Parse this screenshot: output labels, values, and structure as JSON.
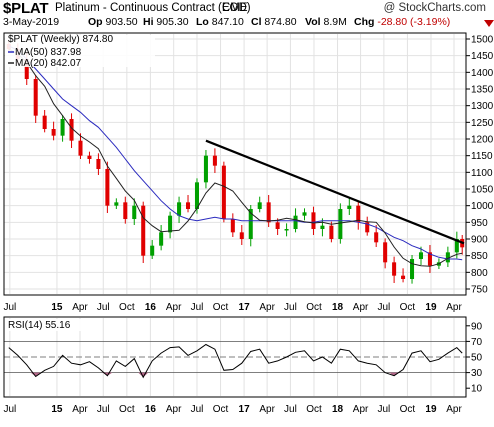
{
  "header": {
    "symbol": "$PLAT",
    "description": "Platinum - Continuous Contract (EOD)",
    "exchange": "CME",
    "watermark": "@ StockCharts.com",
    "date": "3-May-2019",
    "quote": {
      "open_label": "Op",
      "open": "903.50",
      "high_label": "Hi",
      "high": "905.30",
      "low_label": "Lo",
      "low": "847.10",
      "close_label": "Cl",
      "close": "874.80",
      "vol_label": "Vol",
      "vol": "8.9M",
      "chg_label": "Chg",
      "chg": "-28.80 (-3.19%)"
    },
    "colors": {
      "down": "#c00000"
    },
    "chg_icon": "down-triangle-icon"
  },
  "chart_data": [
    {
      "type": "candlestick",
      "legend": [
        {
          "label": "$PLAT (Weekly) 874.80",
          "color": "#000000"
        },
        {
          "label": "MA(50) 837.98",
          "color": "#2b2bbf"
        },
        {
          "label": "MA(20) 842.07",
          "color": "#222222"
        }
      ],
      "x_tick_labels": [
        "Jul",
        "15",
        "Apr",
        "Jul",
        "Oct",
        "16",
        "Apr",
        "Jul",
        "Oct",
        "17",
        "Apr",
        "Jul",
        "Oct",
        "18",
        "Apr",
        "Jul",
        "Oct",
        "19",
        "Apr"
      ],
      "y_ticks": [
        750,
        800,
        850,
        900,
        950,
        1000,
        1050,
        1100,
        1150,
        1200,
        1250,
        1300,
        1350,
        1400,
        1450,
        1500
      ],
      "ylim": [
        735,
        1515
      ],
      "grid": true,
      "colors": {
        "up": "#00a000",
        "down": "#e00000",
        "ma50": "#2b2bbf",
        "ma20": "#222222",
        "trendline": "#000000"
      },
      "trendline": [
        {
          "x": "2016-08-05",
          "y": 1195
        },
        {
          "x": "2019-05-03",
          "y": 893
        }
      ],
      "x": [
        "2014-06-27",
        "2014-08-01",
        "2014-09-05",
        "2014-10-10",
        "2014-11-14",
        "2014-12-19",
        "2015-01-23",
        "2015-02-27",
        "2015-04-03",
        "2015-05-08",
        "2015-06-12",
        "2015-07-17",
        "2015-08-21",
        "2015-09-25",
        "2015-10-30",
        "2015-12-04",
        "2016-01-08",
        "2016-02-12",
        "2016-03-18",
        "2016-04-22",
        "2016-05-27",
        "2016-07-01",
        "2016-08-05",
        "2016-09-09",
        "2016-10-14",
        "2016-11-18",
        "2016-12-23",
        "2017-01-27",
        "2017-03-03",
        "2017-04-07",
        "2017-05-12",
        "2017-06-16",
        "2017-07-21",
        "2017-08-25",
        "2017-09-29",
        "2017-11-03",
        "2017-12-08",
        "2018-01-12",
        "2018-02-16",
        "2018-03-23",
        "2018-04-27",
        "2018-06-01",
        "2018-07-06",
        "2018-08-10",
        "2018-09-14",
        "2018-10-19",
        "2018-11-23",
        "2018-12-28",
        "2019-02-01",
        "2019-03-08",
        "2019-04-12",
        "2019-05-03"
      ],
      "close": [
        1470,
        1440,
        1380,
        1270,
        1230,
        1210,
        1260,
        1195,
        1150,
        1140,
        1110,
        1000,
        1010,
        960,
        1000,
        850,
        880,
        920,
        970,
        1010,
        990,
        1070,
        1150,
        1120,
        960,
        920,
        900,
        990,
        1010,
        950,
        930,
        930,
        970,
        980,
        930,
        940,
        900,
        990,
        1000,
        950,
        920,
        890,
        830,
        790,
        780,
        840,
        860,
        820,
        830,
        860,
        900,
        875
      ],
      "ma50": [
        1480,
        1465,
        1440,
        1410,
        1380,
        1350,
        1320,
        1300,
        1280,
        1255,
        1235,
        1205,
        1175,
        1140,
        1105,
        1075,
        1045,
        1015,
        990,
        970,
        960,
        955,
        960,
        965,
        960,
        960,
        955,
        955,
        955,
        955,
        955,
        955,
        955,
        950,
        950,
        955,
        955,
        955,
        955,
        950,
        945,
        935,
        920,
        905,
        895,
        880,
        870,
        855,
        845,
        840,
        840,
        838
      ]
    },
    {
      "type": "line",
      "legend": [
        {
          "label": "RSI(14) 55.16",
          "color": "#000000"
        }
      ],
      "y_ticks": [
        10,
        30,
        50,
        70,
        90
      ],
      "ylim": [
        0,
        100
      ],
      "reference_lines": [
        30,
        50,
        70
      ],
      "x": [
        "2014-06-27",
        "2014-08-01",
        "2014-09-05",
        "2014-10-10",
        "2014-11-14",
        "2014-12-19",
        "2015-01-23",
        "2015-02-27",
        "2015-04-03",
        "2015-05-08",
        "2015-06-12",
        "2015-07-17",
        "2015-08-21",
        "2015-09-25",
        "2015-10-30",
        "2015-12-04",
        "2016-01-08",
        "2016-02-12",
        "2016-03-18",
        "2016-04-22",
        "2016-05-27",
        "2016-07-01",
        "2016-08-05",
        "2016-09-09",
        "2016-10-14",
        "2016-11-18",
        "2016-12-23",
        "2017-01-27",
        "2017-03-03",
        "2017-04-07",
        "2017-05-12",
        "2017-06-16",
        "2017-07-21",
        "2017-08-25",
        "2017-09-29",
        "2017-11-03",
        "2017-12-08",
        "2018-01-12",
        "2018-02-16",
        "2018-03-23",
        "2018-04-27",
        "2018-06-01",
        "2018-07-06",
        "2018-08-10",
        "2018-09-14",
        "2018-10-19",
        "2018-11-23",
        "2018-12-28",
        "2019-02-01",
        "2019-03-08",
        "2019-04-12",
        "2019-05-03"
      ],
      "values": [
        62,
        52,
        40,
        25,
        33,
        38,
        52,
        42,
        40,
        44,
        36,
        26,
        45,
        38,
        48,
        24,
        45,
        55,
        62,
        63,
        52,
        58,
        66,
        60,
        33,
        34,
        42,
        57,
        60,
        42,
        45,
        50,
        56,
        58,
        45,
        50,
        42,
        60,
        58,
        45,
        42,
        40,
        30,
        26,
        34,
        55,
        58,
        44,
        47,
        55,
        62,
        55
      ]
    }
  ]
}
